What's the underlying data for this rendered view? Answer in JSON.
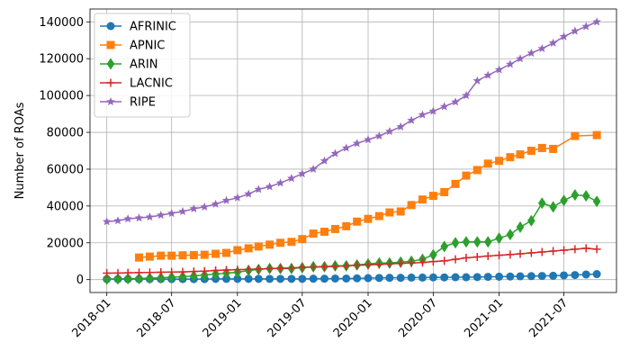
{
  "chart_data": {
    "type": "line",
    "title": "",
    "xlabel": "",
    "ylabel": "Number of ROAs",
    "xlim": [
      "2017-11-15",
      "2021-11-25"
    ],
    "ylim": [
      -7000,
      147000
    ],
    "grid": true,
    "legend_position": "top-left",
    "x_ticks": [
      "2018-01",
      "2018-07",
      "2019-01",
      "2019-07",
      "2020-01",
      "2020-07",
      "2021-01",
      "2021-07"
    ],
    "y_ticks": [
      0,
      20000,
      40000,
      60000,
      80000,
      100000,
      120000,
      140000
    ],
    "y_tick_labels": [
      "0",
      "20000",
      "40000",
      "60000",
      "80000",
      "100000",
      "120000",
      "140000"
    ],
    "dates": [
      "2018-01",
      "2018-02",
      "2018-03",
      "2018-04",
      "2018-05",
      "2018-06",
      "2018-07",
      "2018-08",
      "2018-09",
      "2018-10",
      "2018-11",
      "2018-12",
      "2019-01",
      "2019-02",
      "2019-03",
      "2019-04",
      "2019-05",
      "2019-06",
      "2019-07",
      "2019-08",
      "2019-09",
      "2019-10",
      "2019-11",
      "2019-12",
      "2020-01",
      "2020-02",
      "2020-03",
      "2020-04",
      "2020-05",
      "2020-06",
      "2020-07",
      "2020-08",
      "2020-09",
      "2020-10",
      "2020-11",
      "2020-12",
      "2021-01",
      "2021-02",
      "2021-03",
      "2021-04",
      "2021-05",
      "2021-06",
      "2021-07",
      "2021-08",
      "2021-09",
      "2021-10"
    ],
    "series": [
      {
        "name": "AFRINIC",
        "color": "#1f77b4",
        "marker": "circle",
        "values": [
          300,
          300,
          300,
          300,
          300,
          300,
          300,
          300,
          300,
          300,
          400,
          400,
          400,
          400,
          400,
          400,
          400,
          400,
          400,
          500,
          500,
          600,
          600,
          700,
          800,
          900,
          1000,
          1000,
          1100,
          1100,
          1200,
          1200,
          1300,
          1300,
          1400,
          1500,
          1600,
          1700,
          1800,
          1900,
          2000,
          2100,
          2300,
          2500,
          2800,
          3000
        ]
      },
      {
        "name": "APNIC",
        "color": "#ff7f0e",
        "marker": "square",
        "values": [
          null,
          null,
          null,
          12000,
          12500,
          13000,
          13000,
          13200,
          13300,
          13500,
          14000,
          14500,
          16000,
          17000,
          18000,
          19000,
          20000,
          20500,
          22000,
          25000,
          26000,
          27500,
          29000,
          31500,
          33000,
          34500,
          36500,
          37000,
          40500,
          43500,
          45500,
          47500,
          52000,
          56500,
          59500,
          63000,
          64500,
          66500,
          68000,
          70000,
          71500,
          71000,
          null,
          78000,
          null,
          78500
        ]
      },
      {
        "name": "ARIN",
        "color": "#2ca02c",
        "marker": "diamond",
        "values": [
          300,
          400,
          500,
          600,
          800,
          1000,
          1300,
          1600,
          2000,
          2500,
          3000,
          3500,
          4000,
          5000,
          5500,
          6000,
          6000,
          6000,
          6500,
          7000,
          7000,
          7500,
          7500,
          8000,
          8500,
          9000,
          9000,
          9500,
          10000,
          11000,
          13500,
          18000,
          20000,
          20500,
          20500,
          20500,
          22500,
          24500,
          28500,
          32000,
          41500,
          39500,
          43000,
          46000,
          45500,
          42500
        ]
      },
      {
        "name": "LACNIC",
        "color": "#d62728",
        "marker": "plus",
        "values": [
          3500,
          3600,
          3700,
          3800,
          3900,
          4000,
          4100,
          4200,
          4400,
          4600,
          5000,
          5200,
          5400,
          5600,
          5800,
          6000,
          6200,
          6400,
          6600,
          6800,
          7000,
          7200,
          7500,
          7800,
          8000,
          8200,
          8500,
          8800,
          9000,
          9300,
          9800,
          10200,
          11000,
          11800,
          12300,
          12800,
          13200,
          13600,
          14000,
          14500,
          15000,
          15500,
          16000,
          16500,
          17000,
          16500
        ]
      },
      {
        "name": "RIPE",
        "color": "#9467bd",
        "marker": "star",
        "values": [
          31500,
          32000,
          33000,
          33500,
          34000,
          35000,
          36000,
          37000,
          38500,
          39500,
          41000,
          43000,
          44500,
          46500,
          49000,
          50500,
          52500,
          55000,
          57500,
          60000,
          64500,
          68500,
          71500,
          74000,
          76000,
          78000,
          80500,
          83000,
          86500,
          89500,
          91500,
          94000,
          96500,
          100000,
          108000,
          111000,
          114000,
          117000,
          120000,
          123000,
          125500,
          128500,
          132000,
          135000,
          137500,
          140000
        ]
      }
    ]
  }
}
